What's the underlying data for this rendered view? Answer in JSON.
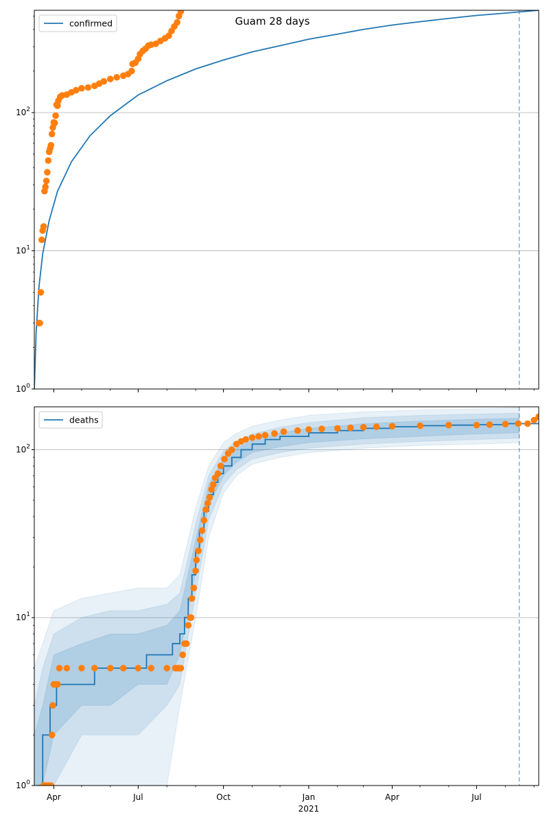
{
  "title": "Guam 28 days",
  "colors": {
    "model": "#1f77b4",
    "observed": "#ff7f0e",
    "band": "#1f77b4",
    "vline": "#1f77b4",
    "grid": "#b0b0b0",
    "axis": "#000000"
  },
  "x_axis": {
    "range": [
      "2020-03-11",
      "2021-09-06"
    ],
    "tick_labels": [
      {
        "date": "2020-04-01",
        "label": "Apr",
        "year": ""
      },
      {
        "date": "2020-07-01",
        "label": "Jul",
        "year": ""
      },
      {
        "date": "2020-10-01",
        "label": "Oct",
        "year": ""
      },
      {
        "date": "2021-01-01",
        "label": "Jan",
        "year": "2021"
      },
      {
        "date": "2021-04-01",
        "label": "Apr",
        "year": ""
      },
      {
        "date": "2021-07-01",
        "label": "Jul",
        "year": ""
      }
    ],
    "forecast_start": "2021-08-16"
  },
  "chart_data": [
    {
      "type": "line",
      "panel": "top",
      "legend": "confirmed",
      "legend_position": "upper-left",
      "yscale": "log",
      "ylim": [
        1,
        550
      ],
      "yticks": [
        {
          "value": 1,
          "label": "10^0"
        },
        {
          "value": 10,
          "label": "10^1"
        },
        {
          "value": 100,
          "label": "10^2"
        }
      ],
      "grid": "horizontal",
      "model_line": {
        "x": [
          "2020-03-11",
          "2020-03-13",
          "2020-03-16",
          "2020-03-20",
          "2020-03-27",
          "2020-04-05",
          "2020-04-20",
          "2020-05-10",
          "2020-06-01",
          "2020-07-01",
          "2020-08-01",
          "2020-09-01",
          "2020-10-01",
          "2020-11-01",
          "2020-12-01",
          "2021-01-01",
          "2021-02-01",
          "2021-03-01",
          "2021-04-01",
          "2021-05-01",
          "2021-06-01",
          "2021-07-01",
          "2021-08-01",
          "2021-08-16",
          "2021-09-06"
        ],
        "y": [
          1,
          2.6,
          5.5,
          9.5,
          16.5,
          27,
          44,
          68,
          95,
          134,
          170,
          207,
          240,
          275,
          305,
          340,
          370,
          400,
          430,
          455,
          480,
          505,
          525,
          535,
          550
        ]
      },
      "observed": {
        "x": [
          "2020-03-16",
          "2020-03-17",
          "2020-03-18",
          "2020-03-19",
          "2020-03-20",
          "2020-03-21",
          "2020-03-22",
          "2020-03-23",
          "2020-03-24",
          "2020-03-25",
          "2020-03-26",
          "2020-03-27",
          "2020-03-28",
          "2020-03-29",
          "2020-03-30",
          "2020-03-31",
          "2020-04-01",
          "2020-04-02",
          "2020-04-03",
          "2020-04-04",
          "2020-04-05",
          "2020-04-06",
          "2020-04-08",
          "2020-04-10",
          "2020-04-15",
          "2020-04-20",
          "2020-04-25",
          "2020-05-01",
          "2020-05-08",
          "2020-05-15",
          "2020-05-20",
          "2020-05-25",
          "2020-06-01",
          "2020-06-08",
          "2020-06-15",
          "2020-06-20",
          "2020-06-24",
          "2020-06-25",
          "2020-06-28",
          "2020-07-01",
          "2020-07-03",
          "2020-07-06",
          "2020-07-09",
          "2020-07-12",
          "2020-07-15",
          "2020-07-20",
          "2020-07-25",
          "2020-07-30",
          "2020-08-03",
          "2020-08-06",
          "2020-08-09",
          "2020-08-12",
          "2020-08-14",
          "2020-08-16"
        ],
        "y": [
          3,
          3,
          5,
          12,
          14,
          15,
          27,
          29,
          32,
          37,
          45,
          52,
          55,
          58,
          70,
          78,
          85,
          84,
          95,
          114,
          112,
          122,
          130,
          133,
          135,
          140,
          145,
          150,
          152,
          156,
          162,
          168,
          175,
          180,
          185,
          190,
          200,
          225,
          230,
          245,
          265,
          280,
          290,
          305,
          310,
          315,
          330,
          345,
          360,
          390,
          420,
          450,
          500,
          540
        ]
      }
    },
    {
      "type": "line",
      "panel": "bottom",
      "legend": "deaths",
      "legend_position": "upper-left",
      "yscale": "log",
      "ylim": [
        1,
        180
      ],
      "yticks": [
        {
          "value": 1,
          "label": "10^0"
        },
        {
          "value": 10,
          "label": "10^1"
        },
        {
          "value": 100,
          "label": "10^2"
        }
      ],
      "grid": "horizontal",
      "model_step": {
        "x": [
          "2020-03-15",
          "2020-03-20",
          "2020-03-24",
          "2020-03-28",
          "2020-04-04",
          "2020-04-18",
          "2020-05-15",
          "2020-06-12",
          "2020-07-10",
          "2020-08-07",
          "2020-08-10",
          "2020-08-15",
          "2020-08-20",
          "2020-08-24",
          "2020-08-28",
          "2020-09-01",
          "2020-09-05",
          "2020-09-10",
          "2020-09-15",
          "2020-09-20",
          "2020-09-25",
          "2020-10-01",
          "2020-10-10",
          "2020-10-20",
          "2020-11-01",
          "2020-11-15",
          "2020-12-01",
          "2021-01-01",
          "2021-02-01",
          "2021-03-01",
          "2021-04-01",
          "2021-05-01",
          "2021-06-01",
          "2021-07-01",
          "2021-08-01",
          "2021-09-06"
        ],
        "y": [
          1,
          2,
          2,
          3,
          4,
          4,
          5,
          5,
          6,
          7,
          7,
          8,
          10,
          13,
          18,
          25,
          33,
          43,
          54,
          64,
          72,
          80,
          90,
          100,
          108,
          115,
          120,
          126,
          130,
          134,
          137,
          139,
          140,
          141,
          143,
          145
        ]
      },
      "bands": [
        {
          "level": "outer",
          "x": [
            "2020-03-11",
            "2020-03-20",
            "2020-04-01",
            "2020-05-01",
            "2020-06-01",
            "2020-07-01",
            "2020-08-01",
            "2020-08-15",
            "2020-09-01",
            "2020-09-15",
            "2020-10-01",
            "2020-10-15",
            "2020-11-01",
            "2020-12-01",
            "2021-01-01",
            "2021-03-01",
            "2021-05-01",
            "2021-07-01",
            "2021-08-16"
          ],
          "upper": [
            5,
            7,
            11,
            13,
            14,
            15,
            15,
            18,
            45,
            80,
            110,
            125,
            138,
            150,
            160,
            168,
            172,
            175,
            178
          ],
          "lower": [
            1,
            1,
            1,
            1,
            1,
            1,
            1,
            3,
            10,
            30,
            55,
            70,
            82,
            90,
            96,
            102,
            106,
            108,
            110
          ]
        },
        {
          "level": "middle",
          "x": [
            "2020-03-11",
            "2020-03-20",
            "2020-04-01",
            "2020-05-01",
            "2020-06-01",
            "2020-07-01",
            "2020-08-01",
            "2020-08-15",
            "2020-09-01",
            "2020-09-15",
            "2020-10-01",
            "2020-10-15",
            "2020-11-01",
            "2020-12-01",
            "2021-01-01",
            "2021-03-01",
            "2021-05-01",
            "2021-07-01",
            "2021-08-16"
          ],
          "upper": [
            3,
            5,
            8,
            10,
            11,
            11,
            12,
            14,
            36,
            70,
            98,
            112,
            124,
            136,
            145,
            155,
            160,
            163,
            165
          ],
          "lower": [
            1,
            1,
            1,
            2,
            2,
            2,
            3,
            4,
            14,
            38,
            62,
            76,
            88,
            96,
            102,
            108,
            112,
            115,
            117
          ]
        },
        {
          "level": "inner",
          "x": [
            "2020-03-11",
            "2020-03-20",
            "2020-04-01",
            "2020-05-01",
            "2020-06-01",
            "2020-07-01",
            "2020-08-01",
            "2020-08-15",
            "2020-09-01",
            "2020-09-15",
            "2020-10-01",
            "2020-10-15",
            "2020-11-01",
            "2020-12-01",
            "2021-01-01",
            "2021-03-01",
            "2021-05-01",
            "2021-07-01",
            "2021-08-16"
          ],
          "upper": [
            2,
            3,
            6,
            7,
            8,
            8,
            9,
            11,
            29,
            62,
            88,
            102,
            114,
            126,
            134,
            143,
            148,
            152,
            154
          ],
          "lower": [
            1,
            1,
            2,
            3,
            3,
            4,
            4,
            6,
            19,
            46,
            70,
            84,
            96,
            104,
            110,
            116,
            120,
            124,
            126
          ]
        }
      ],
      "observed": {
        "x": [
          "2020-03-21",
          "2020-03-23",
          "2020-03-25",
          "2020-03-27",
          "2020-03-29",
          "2020-03-30",
          "2020-03-31",
          "2020-04-01",
          "2020-04-03",
          "2020-04-05",
          "2020-04-07",
          "2020-04-15",
          "2020-05-01",
          "2020-05-15",
          "2020-06-01",
          "2020-06-15",
          "2020-07-01",
          "2020-07-15",
          "2020-08-01",
          "2020-08-10",
          "2020-08-12",
          "2020-08-14",
          "2020-08-16",
          "2020-08-18",
          "2020-08-20",
          "2020-08-22",
          "2020-08-24",
          "2020-08-26",
          "2020-08-27",
          "2020-08-28",
          "2020-08-30",
          "2020-09-01",
          "2020-09-02",
          "2020-09-04",
          "2020-09-06",
          "2020-09-08",
          "2020-09-10",
          "2020-09-12",
          "2020-09-14",
          "2020-09-16",
          "2020-09-18",
          "2020-09-20",
          "2020-09-22",
          "2020-09-25",
          "2020-09-28",
          "2020-10-02",
          "2020-10-06",
          "2020-10-10",
          "2020-10-15",
          "2020-10-20",
          "2020-10-25",
          "2020-11-01",
          "2020-11-08",
          "2020-11-15",
          "2020-11-25",
          "2020-12-05",
          "2020-12-20",
          "2021-01-01",
          "2021-01-15",
          "2021-02-01",
          "2021-02-15",
          "2021-03-01",
          "2021-03-15",
          "2021-04-01",
          "2021-05-01",
          "2021-06-01",
          "2021-07-01",
          "2021-07-15",
          "2021-08-01",
          "2021-08-15",
          "2021-08-25",
          "2021-09-01",
          "2021-09-06"
        ],
        "y": [
          1,
          1,
          1,
          1,
          1,
          2,
          3,
          4,
          4,
          4,
          5,
          5,
          5,
          5,
          5,
          5,
          5,
          5,
          5,
          5,
          5,
          5,
          5,
          6,
          7,
          7,
          9,
          10,
          10,
          13,
          15,
          19,
          22,
          25,
          29,
          33,
          38,
          44,
          48,
          52,
          58,
          62,
          68,
          72,
          80,
          88,
          95,
          100,
          108,
          112,
          115,
          118,
          120,
          122,
          125,
          128,
          130,
          132,
          133,
          134,
          135,
          136,
          137,
          138,
          139,
          140,
          140,
          141,
          142,
          143,
          143,
          150,
          157
        ]
      }
    }
  ]
}
